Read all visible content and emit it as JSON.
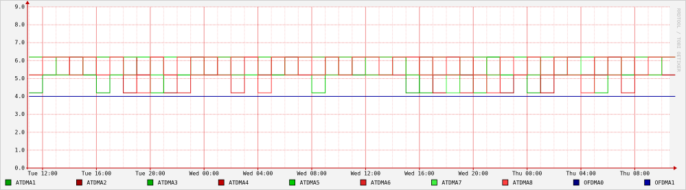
{
  "chart_data": {
    "type": "step-line",
    "watermark": "RRDTOOL / TOBI OETIKER",
    "categories": [
      null,
      "Tue 12:00",
      null,
      null,
      null,
      "Tue 16:00",
      null,
      null,
      null,
      "Tue 20:00",
      null,
      null,
      null,
      "Wed 00:00",
      null,
      null,
      null,
      "Wed 04:00",
      null,
      null,
      null,
      "Wed 08:00",
      null,
      null,
      null,
      "Wed 12:00",
      null,
      null,
      null,
      "Wed 16:00",
      null,
      null,
      null,
      "Wed 20:00",
      null,
      null,
      null,
      "Thu 00:00",
      null,
      null,
      null,
      "Thu 04:00",
      null,
      null,
      null,
      "Thu 08:00",
      null,
      null
    ],
    "ylim": [
      0,
      9
    ],
    "yticks": [
      {
        "value": 0,
        "label": "0.0"
      },
      {
        "value": 1,
        "label": "1.0"
      },
      {
        "value": 2,
        "label": "2.0"
      },
      {
        "value": 3,
        "label": "3.0"
      },
      {
        "value": 4,
        "label": "4.0"
      },
      {
        "value": 5,
        "label": "5.0"
      },
      {
        "value": 6,
        "label": "6.0"
      },
      {
        "value": 7,
        "label": "7.0"
      },
      {
        "value": 8,
        "label": "8.0"
      },
      {
        "value": 9,
        "label": "9.0"
      }
    ],
    "grid": true,
    "legend": "bottom",
    "series": [
      {
        "name": "ATDMA1",
        "color": "#00a000",
        "values": [
          4.2,
          6.2,
          5.2,
          6.2,
          5.2,
          6.2,
          6.2,
          5.2,
          6.2,
          5.2,
          6.2,
          5.2,
          6.2,
          6.2,
          5.2,
          6.2,
          5.2,
          6.2,
          5.2,
          6.2,
          6.2,
          5.2,
          6.2,
          5.2,
          6.2,
          5.2,
          6.2,
          6.2,
          4.2,
          6.2,
          5.2,
          6.2,
          5.2,
          6.2,
          6.2,
          5.2,
          6.2,
          5.2,
          6.2,
          5.2,
          6.2,
          6.2,
          5.2,
          6.2,
          5.2,
          6.2,
          5.2,
          6.2
        ]
      },
      {
        "name": "ATDMA2",
        "color": "#a00000",
        "values": [
          6.2,
          5.2,
          6.2,
          5.2,
          6.2,
          6.2,
          5.2,
          6.2,
          5.2,
          6.2,
          4.2,
          6.2,
          5.2,
          6.2,
          6.2,
          5.2,
          6.2,
          5.2,
          6.2,
          5.2,
          6.2,
          6.2,
          5.2,
          6.2,
          5.2,
          6.2,
          5.2,
          6.2,
          6.2,
          5.2,
          6.2,
          5.2,
          6.2,
          5.2,
          6.2,
          4.2,
          5.2,
          6.2,
          5.2,
          6.2,
          6.2,
          5.2,
          6.2,
          5.2,
          6.2,
          5.2,
          6.2,
          5.2
        ]
      },
      {
        "name": "ATDMA3",
        "color": "#00b000",
        "values": [
          5.2,
          6.2,
          6.2,
          5.2,
          6.2,
          4.2,
          6.2,
          5.2,
          6.2,
          6.2,
          5.2,
          6.2,
          5.2,
          6.2,
          5.2,
          6.2,
          6.2,
          5.2,
          6.2,
          5.2,
          6.2,
          5.2,
          6.2,
          6.2,
          5.2,
          6.2,
          5.2,
          6.2,
          5.2,
          4.2,
          6.2,
          5.2,
          6.2,
          5.2,
          6.2,
          6.2,
          5.2,
          4.2,
          6.2,
          5.2,
          6.2,
          5.2,
          6.2,
          6.2,
          5.2,
          6.2,
          5.2,
          6.2
        ]
      },
      {
        "name": "ATDMA4",
        "color": "#c00000",
        "values": [
          6.2,
          6.2,
          5.2,
          6.2,
          5.2,
          6.2,
          5.2,
          4.2,
          5.2,
          6.2,
          5.2,
          6.2,
          6.2,
          5.2,
          6.2,
          5.2,
          6.2,
          6.2,
          5.2,
          6.2,
          5.2,
          6.2,
          6.2,
          5.2,
          6.2,
          5.2,
          6.2,
          5.2,
          6.2,
          6.2,
          4.2,
          6.2,
          5.2,
          6.2,
          5.2,
          6.2,
          6.2,
          5.2,
          4.2,
          6.2,
          5.2,
          6.2,
          5.2,
          6.2,
          6.2,
          5.2,
          6.2,
          5.2
        ]
      },
      {
        "name": "ATDMA5",
        "color": "#00cc00",
        "values": [
          6.2,
          5.2,
          6.2,
          6.2,
          5.2,
          6.2,
          5.2,
          6.2,
          6.2,
          4.2,
          6.2,
          5.2,
          6.2,
          5.2,
          6.2,
          6.2,
          5.2,
          6.2,
          5.2,
          6.2,
          6.2,
          4.2,
          6.2,
          5.2,
          6.2,
          6.2,
          5.2,
          6.2,
          5.2,
          6.2,
          6.2,
          5.2,
          6.2,
          4.2,
          6.2,
          5.2,
          6.2,
          6.2,
          5.2,
          6.2,
          5.2,
          6.2,
          4.2,
          5.2,
          6.2,
          5.2,
          6.2,
          6.2
        ]
      },
      {
        "name": "ATDMA6",
        "color": "#e02020",
        "values": [
          5.2,
          6.2,
          5.2,
          6.2,
          6.2,
          5.2,
          6.2,
          6.2,
          5.2,
          6.2,
          5.2,
          4.2,
          6.2,
          5.2,
          6.2,
          4.2,
          6.2,
          5.2,
          6.2,
          6.2,
          5.2,
          6.2,
          5.2,
          6.2,
          6.2,
          5.2,
          6.2,
          6.2,
          5.2,
          6.2,
          5.2,
          6.2,
          4.2,
          6.2,
          5.2,
          6.2,
          5.2,
          6.2,
          6.2,
          5.2,
          6.2,
          5.2,
          6.2,
          6.2,
          4.2,
          6.2,
          5.2,
          6.2
        ]
      },
      {
        "name": "ATDMA7",
        "color": "#40f040",
        "values": [
          6.2,
          6.2,
          5.2,
          5.2,
          6.2,
          6.2,
          5.2,
          6.2,
          6.2,
          5.2,
          6.2,
          6.2,
          5.2,
          6.2,
          6.2,
          5.2,
          5.2,
          6.2,
          6.2,
          5.2,
          6.2,
          6.2,
          5.2,
          6.2,
          6.2,
          5.2,
          6.2,
          6.2,
          5.2,
          5.2,
          6.2,
          4.2,
          6.2,
          6.2,
          5.2,
          6.2,
          6.2,
          5.2,
          6.2,
          6.2,
          5.2,
          6.2,
          6.2,
          5.2,
          6.2,
          6.2,
          5.2,
          6.2
        ]
      },
      {
        "name": "ATDMA8",
        "color": "#ff4040",
        "values": [
          5.2,
          6.2,
          6.2,
          5.2,
          6.2,
          5.2,
          6.2,
          5.2,
          4.2,
          6.2,
          5.2,
          6.2,
          5.2,
          6.2,
          5.2,
          6.2,
          6.2,
          4.2,
          6.2,
          5.2,
          6.2,
          5.2,
          6.2,
          5.2,
          6.2,
          6.2,
          5.2,
          6.2,
          6.2,
          5.2,
          6.2,
          5.2,
          6.2,
          5.2,
          4.2,
          6.2,
          5.2,
          6.2,
          5.2,
          6.2,
          5.2,
          4.2,
          6.2,
          5.2,
          6.2,
          5.2,
          6.2,
          6.2
        ]
      },
      {
        "name": "OFDMA0",
        "color": "#000080",
        "values": [
          4,
          4,
          4,
          4,
          4,
          4,
          4,
          4,
          4,
          4,
          4,
          4,
          4,
          4,
          4,
          4,
          4,
          4,
          4,
          4,
          4,
          4,
          4,
          4,
          4,
          4,
          4,
          4,
          4,
          4,
          4,
          4,
          4,
          4,
          4,
          4,
          4,
          4,
          4,
          4,
          4,
          4,
          4,
          4,
          4,
          4,
          4,
          4
        ]
      },
      {
        "name": "OFDMA1",
        "color": "#0000a0",
        "values": [
          4,
          4,
          4,
          4,
          4,
          4,
          4,
          4,
          4,
          4,
          4,
          4,
          4,
          4,
          4,
          4,
          4,
          4,
          4,
          4,
          4,
          4,
          4,
          4,
          4,
          4,
          4,
          4,
          4,
          4,
          4,
          4,
          4,
          4,
          4,
          4,
          4,
          4,
          4,
          4,
          4,
          4,
          4,
          4,
          4,
          4,
          4,
          4
        ]
      }
    ]
  }
}
